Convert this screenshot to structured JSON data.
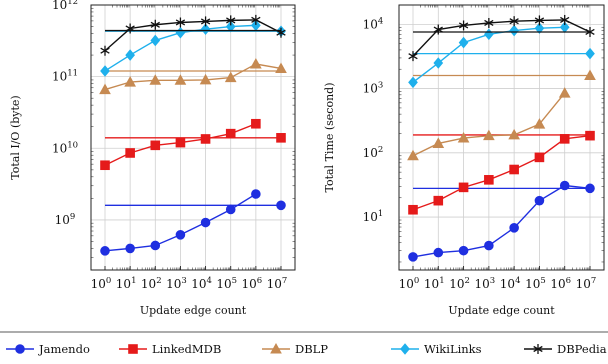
{
  "chart_data": [
    {
      "type": "line",
      "x_scale": "log",
      "y_scale": "log",
      "xlabel": "Update edge count",
      "ylabel": "Total I/O (byte)",
      "xlim": [
        1,
        10000000
      ],
      "ylim": [
        200000000,
        1000000000000
      ],
      "x_ticks": [
        "10^0",
        "10^1",
        "10^2",
        "10^3",
        "10^4",
        "10^5",
        "10^6",
        "10^7"
      ],
      "y_ticks": [
        "10^9",
        "10^10",
        "10^11",
        "10^12"
      ],
      "grid": true,
      "series": [
        {
          "name": "Jamendo",
          "x": [
            1,
            10,
            100,
            1000,
            10000,
            100000,
            1000000
          ],
          "y": [
            370000000,
            400000000,
            440000000,
            620000000,
            920000000,
            1400000000,
            2300000000
          ],
          "reference_line": 1600000000
        },
        {
          "name": "LinkedMDB",
          "x": [
            1,
            10,
            100,
            1000,
            10000,
            100000,
            1000000
          ],
          "y": [
            5800000000,
            8600000000,
            11000000000,
            12000000000,
            13500000000,
            16000000000,
            22000000000
          ],
          "reference_line": 14000000000
        },
        {
          "name": "DBLP",
          "x": [
            1,
            10,
            100,
            1000,
            10000,
            100000,
            1000000,
            10000000
          ],
          "y": [
            66000000000,
            84000000000,
            89000000000,
            89000000000,
            90000000000,
            97000000000,
            150000000000,
            130000000000
          ],
          "reference_line": 120000000000
        },
        {
          "name": "WikiLinks",
          "x": [
            1,
            10,
            100,
            1000,
            10000,
            100000,
            1000000
          ],
          "y": [
            120000000000,
            200000000000,
            320000000000,
            410000000000,
            460000000000,
            500000000000,
            520000000000
          ],
          "reference_line": 430000000000
        },
        {
          "name": "DBPedia",
          "x": [
            1,
            10,
            100,
            1000,
            10000,
            100000,
            1000000,
            10000000
          ],
          "y": [
            230000000000,
            470000000000,
            530000000000,
            570000000000,
            590000000000,
            610000000000,
            620000000000,
            410000000000
          ],
          "reference_line": 440000000000
        }
      ]
    },
    {
      "type": "line",
      "x_scale": "log",
      "y_scale": "log",
      "xlabel": "Update edge count",
      "ylabel": "Total Time (second)",
      "xlim": [
        1,
        10000000
      ],
      "ylim": [
        1.5,
        20000
      ],
      "x_ticks": [
        "10^0",
        "10^1",
        "10^2",
        "10^3",
        "10^4",
        "10^5",
        "10^6",
        "10^7"
      ],
      "y_ticks": [
        "10^1",
        "10^2",
        "10^3",
        "10^4"
      ],
      "grid": true,
      "series": [
        {
          "name": "Jamendo",
          "x": [
            1,
            10,
            100,
            1000,
            10000,
            100000,
            1000000,
            10000000
          ],
          "y": [
            2.4,
            2.8,
            3,
            3.6,
            6.8,
            18,
            31,
            28
          ],
          "reference_line": 28
        },
        {
          "name": "LinkedMDB",
          "x": [
            1,
            10,
            100,
            1000,
            10000,
            100000,
            1000000,
            10000000
          ],
          "y": [
            13,
            18,
            29,
            38,
            55,
            85,
            165,
            185
          ],
          "reference_line": 190
        },
        {
          "name": "DBLP",
          "x": [
            1,
            10,
            100,
            1000,
            10000,
            100000,
            1000000
          ],
          "y": [
            90,
            140,
            170,
            185,
            190,
            280,
            850
          ],
          "reference_line": 1600
        },
        {
          "name": "WikiLinks",
          "x": [
            1,
            10,
            100,
            1000,
            10000,
            100000,
            1000000
          ],
          "y": [
            1250,
            2500,
            5200,
            7000,
            8000,
            8700,
            9000
          ],
          "reference_line": 3500
        },
        {
          "name": "DBPedia",
          "x": [
            1,
            10,
            100,
            1000,
            10000,
            100000,
            1000000,
            10000000
          ],
          "y": [
            3200,
            8300,
            9600,
            10500,
            11200,
            11500,
            11700,
            7600
          ],
          "reference_line": 7600
        }
      ]
    }
  ],
  "legend": {
    "placement": "bottom",
    "items": [
      {
        "name": "Jamendo",
        "color": "#1f2fe0",
        "marker": "circle"
      },
      {
        "name": "LinkedMDB",
        "color": "#e51b1b",
        "marker": "square"
      },
      {
        "name": "DBLP",
        "color": "#c68a52",
        "marker": "triangle"
      },
      {
        "name": "WikiLinks",
        "color": "#1fb0ec",
        "marker": "diamond"
      },
      {
        "name": "DBPedia",
        "color": "#111111",
        "marker": "star"
      }
    ]
  }
}
